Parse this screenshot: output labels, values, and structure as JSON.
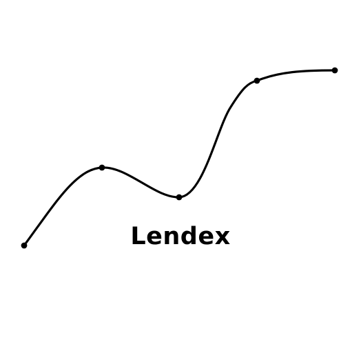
{
  "brand": {
    "name": "Lendex",
    "color": "#000000"
  },
  "logo_mark": {
    "icon": "rising-curve-with-nodes-icon",
    "node_count": 5
  }
}
